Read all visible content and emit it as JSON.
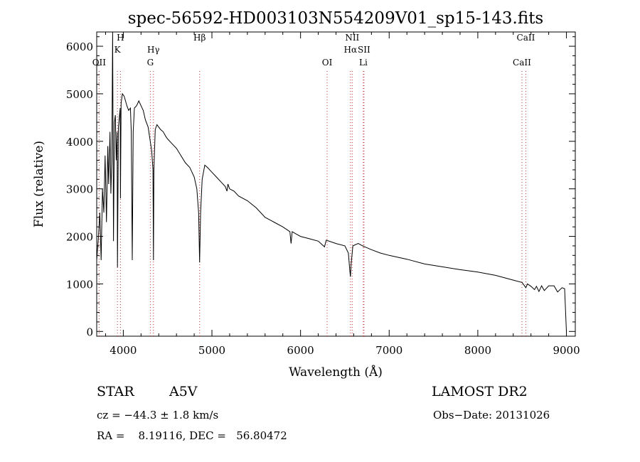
{
  "chart_data": {
    "type": "line",
    "title": "spec-56592-HD003103N554209V01_sp15-143.fits",
    "xlabel": "Wavelength (Å)",
    "ylabel": "Flux (relative)",
    "xlim": [
      3700,
      9100
    ],
    "ylim": [
      -100,
      6300
    ],
    "x_ticks": [
      4000,
      5000,
      6000,
      7000,
      8000,
      9000
    ],
    "y_ticks": [
      0,
      1000,
      2000,
      3000,
      4000,
      5000,
      6000
    ],
    "grid": false,
    "series": [
      {
        "x": [
          3700,
          3720,
          3735,
          3750,
          3765,
          3780,
          3795,
          3810,
          3825,
          3835,
          3850,
          3860,
          3870,
          3880,
          3889,
          3900,
          3910,
          3920,
          3930,
          3934,
          3945,
          3955,
          3965,
          3968,
          3975,
          3990,
          4010,
          4040,
          4060,
          4080,
          4090,
          4101,
          4112,
          4125,
          4150,
          4175,
          4200,
          4225,
          4250,
          4280,
          4320,
          4335,
          4340,
          4345,
          4360,
          4380,
          4400,
          4420,
          4450,
          4480,
          4500,
          4550,
          4600,
          4650,
          4700,
          4750,
          4800,
          4830,
          4850,
          4861,
          4872,
          4890,
          4920,
          4950,
          5000,
          5050,
          5100,
          5150,
          5170,
          5180,
          5200,
          5250,
          5300,
          5400,
          5500,
          5600,
          5700,
          5800,
          5880,
          5893,
          5906,
          5950,
          6000,
          6100,
          6200,
          6270,
          6290,
          6400,
          6500,
          6540,
          6555,
          6563,
          6570,
          6590,
          6650,
          6700,
          6800,
          6900,
          7000,
          7200,
          7400,
          7600,
          7800,
          8000,
          8200,
          8400,
          8500,
          8542,
          8560,
          8600,
          8640,
          8662,
          8690,
          8720,
          8750,
          8800,
          8860,
          8900,
          8950,
          8980,
          9000
        ],
        "values": [
          1500,
          2000,
          2500,
          1500,
          3000,
          2500,
          3700,
          2300,
          3900,
          3100,
          4200,
          2900,
          3600,
          6300,
          1900,
          4400,
          4550,
          3600,
          4200,
          1350,
          4300,
          4500,
          4700,
          2800,
          4800,
          5000,
          4950,
          4750,
          4650,
          4700,
          4200,
          1500,
          4200,
          4700,
          4750,
          4850,
          4750,
          4650,
          4450,
          4300,
          3800,
          3400,
          1500,
          3400,
          4250,
          4350,
          4300,
          4250,
          4200,
          4100,
          4050,
          3950,
          3850,
          3700,
          3550,
          3450,
          3250,
          3000,
          2500,
          1450,
          2500,
          3200,
          3500,
          3450,
          3350,
          3250,
          3150,
          3050,
          2950,
          3100,
          3000,
          2950,
          2850,
          2750,
          2600,
          2400,
          2300,
          2200,
          2100,
          1850,
          2100,
          2050,
          2000,
          1950,
          1900,
          1780,
          1920,
          1850,
          1800,
          1650,
          1300,
          1150,
          1400,
          1800,
          1850,
          1800,
          1720,
          1650,
          1600,
          1520,
          1420,
          1360,
          1300,
          1250,
          1180,
          1080,
          1030,
          920,
          1000,
          950,
          880,
          950,
          840,
          960,
          860,
          960,
          960,
          830,
          920,
          900,
          0
        ]
      }
    ],
    "lines": [
      {
        "label": "OII",
        "x": 3727
      },
      {
        "label": "H",
        "x": 3968
      },
      {
        "label": "K",
        "x": 3934
      },
      {
        "label": "Hγ",
        "x": 4340
      },
      {
        "label": "G",
        "x": 4305
      },
      {
        "label": "Hβ",
        "x": 4861
      },
      {
        "label": "OI",
        "x": 6300
      },
      {
        "label": "NII",
        "x": 6583
      },
      {
        "label": "Hα",
        "x": 6563
      },
      {
        "label": "Li",
        "x": 6708
      },
      {
        "label": "SII",
        "x": 6716
      },
      {
        "label": "CaII",
        "x": 8542
      },
      {
        "label": "CaII",
        "x": 8498
      }
    ]
  },
  "info": {
    "obj_class": "STAR",
    "subclass": "A5V",
    "survey": "LAMOST DR2",
    "cz": "cz = −44.3 ± 1.8 km/s",
    "obs_date": "Obs−Date: 20131026",
    "coords": "RA =    8.19116, DEC =   56.80472"
  }
}
